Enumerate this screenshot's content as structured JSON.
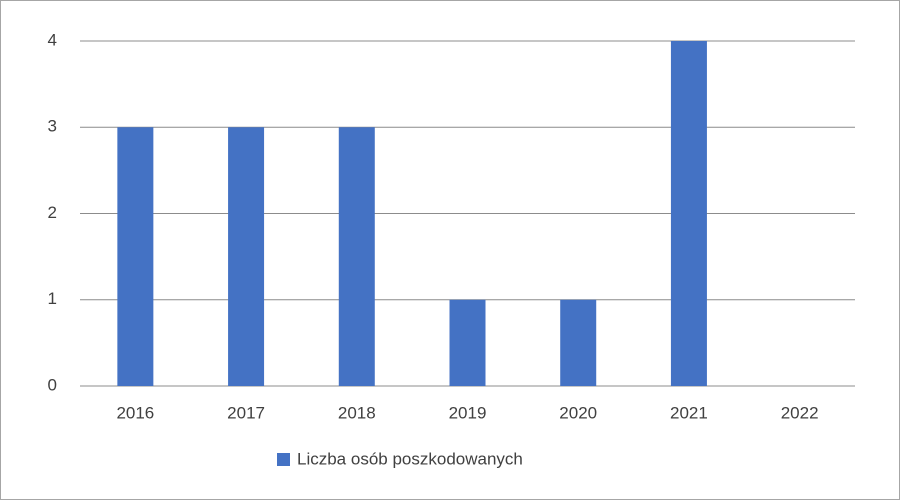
{
  "chart_data": {
    "type": "bar",
    "categories": [
      "2016",
      "2017",
      "2018",
      "2019",
      "2020",
      "2021",
      "2022"
    ],
    "series": [
      {
        "name": "Liczba osób poszkodowanych",
        "color": "#4472c4",
        "values": [
          3,
          3,
          3,
          1,
          1,
          4,
          0
        ]
      }
    ],
    "ylim": [
      0,
      4
    ],
    "yticks": [
      0,
      1,
      2,
      3,
      4
    ],
    "grid": true,
    "legend": "bottom"
  }
}
